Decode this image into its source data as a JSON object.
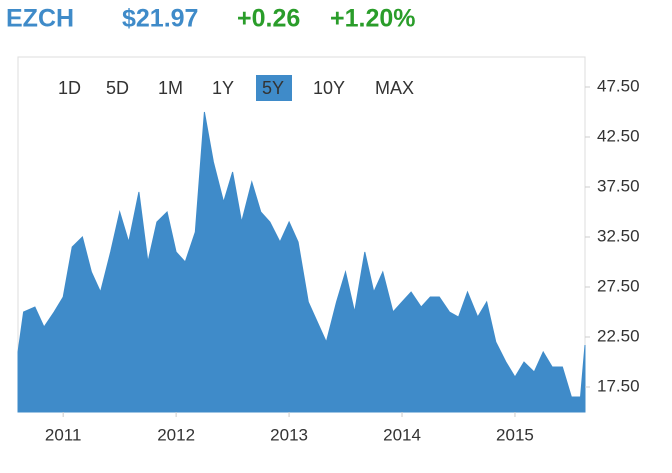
{
  "header": {
    "ticker": "EZCH",
    "price": "$21.97",
    "change": "+0.26",
    "change_percent": "+1.20%"
  },
  "range_buttons": [
    "1D",
    "5D",
    "1M",
    "1Y",
    "5Y",
    "10Y",
    "MAX"
  ],
  "selected_range_index": 4,
  "chart_data": {
    "type": "area",
    "color": "#3f8bc9",
    "x": [
      2010.6,
      2010.65,
      2010.75,
      2010.83,
      2010.92,
      2011.0,
      2011.08,
      2011.17,
      2011.25,
      2011.33,
      2011.42,
      2011.5,
      2011.58,
      2011.67,
      2011.75,
      2011.83,
      2011.92,
      2012.0,
      2012.08,
      2012.17,
      2012.25,
      2012.33,
      2012.42,
      2012.5,
      2012.58,
      2012.67,
      2012.75,
      2012.83,
      2012.92,
      2013.0,
      2013.08,
      2013.17,
      2013.25,
      2013.33,
      2013.42,
      2013.5,
      2013.58,
      2013.67,
      2013.75,
      2013.83,
      2013.92,
      2014.0,
      2014.08,
      2014.17,
      2014.25,
      2014.33,
      2014.42,
      2014.5,
      2014.58,
      2014.67,
      2014.75,
      2014.83,
      2014.92,
      2015.0,
      2015.08,
      2015.17,
      2015.25,
      2015.33,
      2015.42,
      2015.5,
      2015.58,
      2015.62
    ],
    "values": [
      21,
      25,
      25.5,
      23.5,
      25,
      26.5,
      31.5,
      32.5,
      29,
      27,
      31,
      35,
      32,
      37,
      30,
      34,
      35,
      31,
      30,
      33,
      45,
      40,
      36,
      39,
      34,
      38,
      35,
      34,
      32,
      34,
      32,
      26,
      24,
      22,
      26,
      29,
      25,
      31,
      27,
      29,
      25,
      26,
      27,
      25.5,
      26.5,
      26.5,
      25,
      24.5,
      27,
      24.5,
      26,
      22,
      20,
      18.5,
      20,
      19,
      21,
      19.5,
      19.5,
      16.5,
      16.5,
      21.7
    ],
    "xlim": [
      2010.6,
      2015.62
    ],
    "xticks": [
      2011,
      2012,
      2013,
      2014,
      2015
    ],
    "ylim": [
      15,
      50.5
    ],
    "yticks": [
      {
        "value": 17.5,
        "label": "17.50"
      },
      {
        "value": 22.5,
        "label": "22.50"
      },
      {
        "value": 27.5,
        "label": "27.50"
      },
      {
        "value": 32.5,
        "label": "32.50"
      },
      {
        "value": 37.5,
        "label": "37.50"
      },
      {
        "value": 42.5,
        "label": "42.50"
      },
      {
        "value": 47.5,
        "label": "47.50"
      }
    ],
    "grid": false
  }
}
